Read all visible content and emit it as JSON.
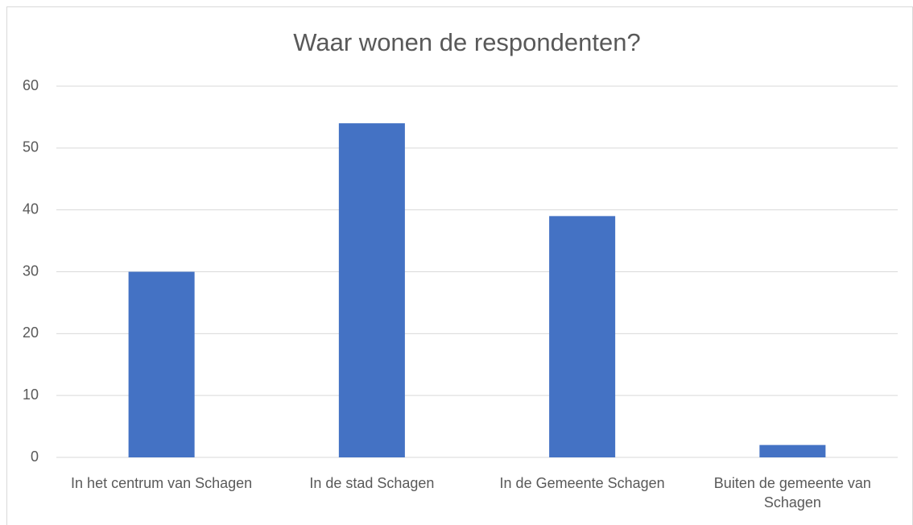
{
  "chart_data": {
    "type": "bar",
    "title": "Waar wonen de respondenten?",
    "categories": [
      "In het centrum van Schagen",
      "In de stad Schagen",
      "In de Gemeente Schagen",
      "Buiten de gemeente van Schagen"
    ],
    "values": [
      30,
      54,
      39,
      2
    ],
    "color": "#4472c4",
    "ylim": [
      0,
      60
    ],
    "yticks": [
      0,
      10,
      20,
      30,
      40,
      50,
      60
    ],
    "grid": true
  }
}
